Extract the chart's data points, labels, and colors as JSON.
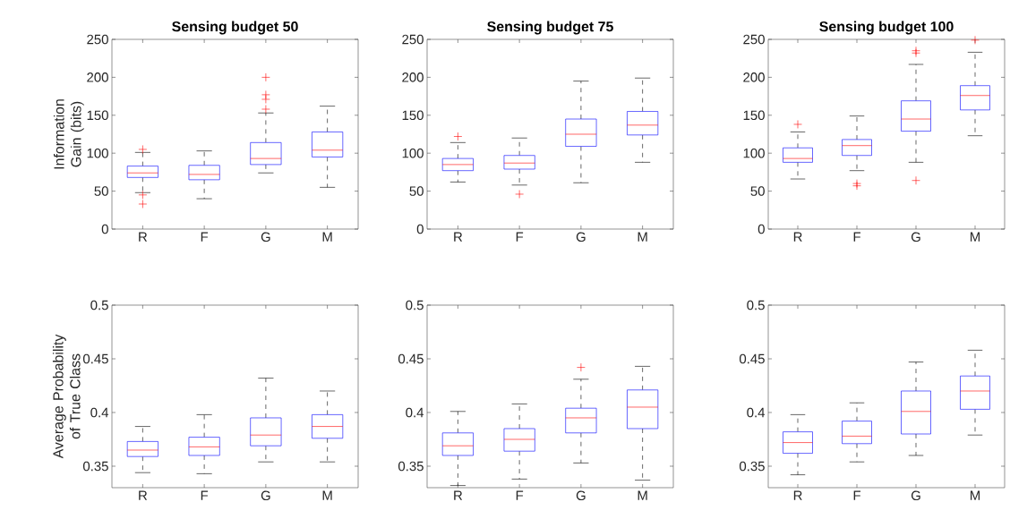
{
  "chart_data": [
    {
      "type": "box",
      "title": "Sensing budget 50",
      "ylabel": "Information Gain (bits)",
      "categories": [
        "R",
        "F",
        "G",
        "M"
      ],
      "ylim": [
        0,
        250
      ],
      "yticks": [
        0,
        50,
        100,
        150,
        200,
        250
      ],
      "color": "#0000ff",
      "boxes": [
        {
          "low": 48,
          "q1": 68,
          "median": 74,
          "q3": 83,
          "high": 101,
          "outliers": [
            105,
            45,
            33
          ]
        },
        {
          "low": 40,
          "q1": 65,
          "median": 72,
          "q3": 84,
          "high": 103
        },
        {
          "low": 74,
          "q1": 85,
          "median": 93,
          "q3": 114,
          "high": 153,
          "outliers": [
            200,
            177,
            171,
            158
          ]
        },
        {
          "low": 55,
          "q1": 95,
          "median": 104,
          "q3": 128,
          "high": 162
        }
      ]
    },
    {
      "type": "box",
      "title": "Sensing budget 75",
      "categories": [
        "R",
        "F",
        "G",
        "M"
      ],
      "ylim": [
        0,
        250
      ],
      "yticks": [
        0,
        50,
        100,
        150,
        200,
        250
      ],
      "color": "#0000ff",
      "boxes": [
        {
          "low": 62,
          "q1": 77,
          "median": 85,
          "q3": 93,
          "high": 114,
          "outliers": [
            122
          ]
        },
        {
          "low": 58,
          "q1": 79,
          "median": 87,
          "q3": 97,
          "high": 120,
          "outliers": [
            46
          ]
        },
        {
          "low": 61,
          "q1": 109,
          "median": 125,
          "q3": 145,
          "high": 195
        },
        {
          "low": 88,
          "q1": 124,
          "median": 137,
          "q3": 155,
          "high": 199
        }
      ]
    },
    {
      "type": "box",
      "title": "Sensing budget 100",
      "categories": [
        "R",
        "F",
        "G",
        "M"
      ],
      "ylim": [
        0,
        250
      ],
      "yticks": [
        0,
        50,
        100,
        150,
        200,
        250
      ],
      "color": "#0000ff",
      "boxes": [
        {
          "low": 66,
          "q1": 88,
          "median": 93,
          "q3": 107,
          "high": 128,
          "outliers": [
            138
          ]
        },
        {
          "low": 77,
          "q1": 97,
          "median": 110,
          "q3": 118,
          "high": 149,
          "outliers": [
            60,
            57
          ]
        },
        {
          "low": 88,
          "q1": 129,
          "median": 145,
          "q3": 169,
          "high": 217,
          "outliers": [
            235,
            232,
            64
          ]
        },
        {
          "low": 123,
          "q1": 157,
          "median": 176,
          "q3": 189,
          "high": 233,
          "outliers": [
            249
          ]
        }
      ]
    },
    {
      "type": "box",
      "ylabel": "Average Probability of True Class",
      "categories": [
        "R",
        "F",
        "G",
        "M"
      ],
      "ylim": [
        0.33,
        0.5
      ],
      "yticks": [
        0.35,
        0.4,
        0.45,
        0.5
      ],
      "color": "#0000ff",
      "boxes": [
        {
          "low": 0.344,
          "q1": 0.359,
          "median": 0.365,
          "q3": 0.373,
          "high": 0.387
        },
        {
          "low": 0.343,
          "q1": 0.36,
          "median": 0.368,
          "q3": 0.377,
          "high": 0.398
        },
        {
          "low": 0.354,
          "q1": 0.369,
          "median": 0.379,
          "q3": 0.395,
          "high": 0.432
        },
        {
          "low": 0.354,
          "q1": 0.376,
          "median": 0.387,
          "q3": 0.398,
          "high": 0.42
        }
      ]
    },
    {
      "type": "box",
      "categories": [
        "R",
        "F",
        "G",
        "M"
      ],
      "ylim": [
        0.33,
        0.5
      ],
      "yticks": [
        0.35,
        0.4,
        0.45,
        0.5
      ],
      "color": "#0000ff",
      "boxes": [
        {
          "low": 0.332,
          "q1": 0.36,
          "median": 0.369,
          "q3": 0.381,
          "high": 0.401
        },
        {
          "low": 0.338,
          "q1": 0.364,
          "median": 0.375,
          "q3": 0.385,
          "high": 0.408
        },
        {
          "low": 0.353,
          "q1": 0.381,
          "median": 0.395,
          "q3": 0.404,
          "high": 0.431,
          "outliers": [
            0.442
          ]
        },
        {
          "low": 0.337,
          "q1": 0.385,
          "median": 0.405,
          "q3": 0.421,
          "high": 0.443
        }
      ]
    },
    {
      "type": "box",
      "categories": [
        "R",
        "F",
        "G",
        "M"
      ],
      "ylim": [
        0.33,
        0.5
      ],
      "yticks": [
        0.35,
        0.4,
        0.45,
        0.5
      ],
      "color": "#0000ff",
      "boxes": [
        {
          "low": 0.342,
          "q1": 0.362,
          "median": 0.372,
          "q3": 0.382,
          "high": 0.398
        },
        {
          "low": 0.354,
          "q1": 0.371,
          "median": 0.378,
          "q3": 0.392,
          "high": 0.409
        },
        {
          "low": 0.36,
          "q1": 0.38,
          "median": 0.401,
          "q3": 0.42,
          "high": 0.447
        },
        {
          "low": 0.379,
          "q1": 0.403,
          "median": 0.42,
          "q3": 0.434,
          "high": 0.458
        }
      ]
    }
  ]
}
